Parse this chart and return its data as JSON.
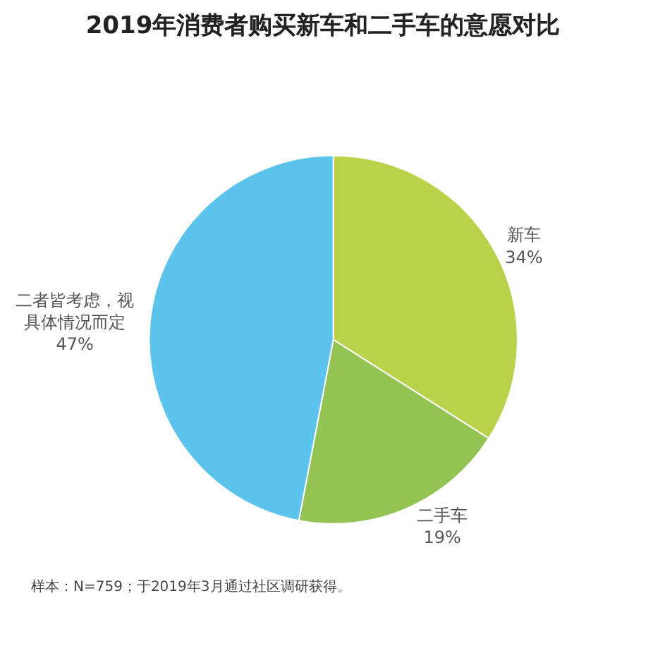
{
  "chart_data": {
    "type": "pie",
    "title": "2019年消费者购买新车和二手车的意愿对比",
    "categories": [
      "新车",
      "二手车",
      "二者皆考虑，视具体情况而定"
    ],
    "values": [
      34,
      19,
      47
    ],
    "value_labels": [
      "34%",
      "19%",
      "47%"
    ],
    "colors": [
      "#b8d24a",
      "#92c353",
      "#5bc3ec"
    ],
    "legend": false,
    "annotations": [
      "样本：N=759；于2019年3月通过社区调研获得。"
    ]
  }
}
